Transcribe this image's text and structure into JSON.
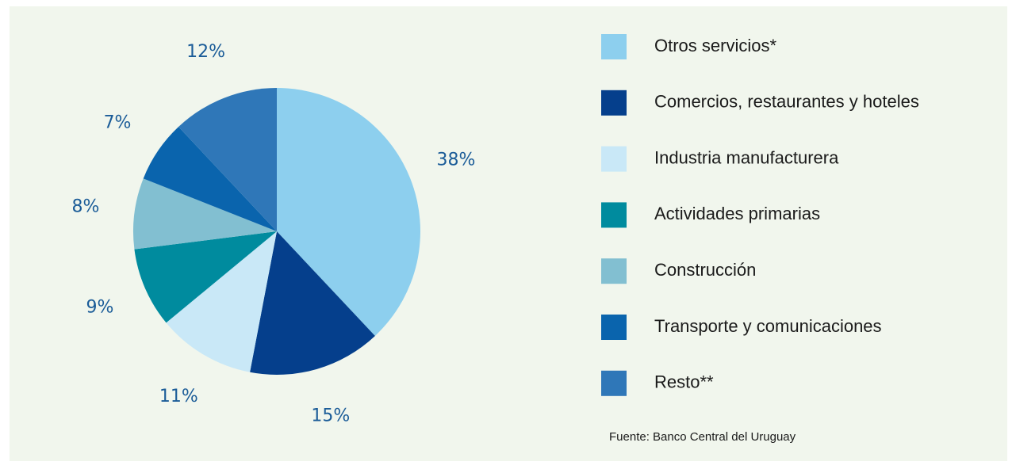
{
  "chart_data": {
    "type": "pie",
    "categories": [
      "Otros servicios*",
      "Comercios, restaurantes y hoteles",
      "Industria manufacturera",
      "Actividades primarias",
      "Construcción",
      "Transporte y comunicaciones",
      "Resto**"
    ],
    "values": [
      38,
      15,
      11,
      9,
      8,
      7,
      12
    ],
    "value_labels": [
      "38%",
      "15%",
      "11%",
      "9%",
      "8%",
      "7%",
      "12%"
    ],
    "colors": [
      "#8dcfee",
      "#053f8c",
      "#c9e8f7",
      "#008b9e",
      "#82bfd1",
      "#0a64ad",
      "#2f77b8"
    ],
    "source": "Fuente: Banco Central del Uruguay"
  }
}
